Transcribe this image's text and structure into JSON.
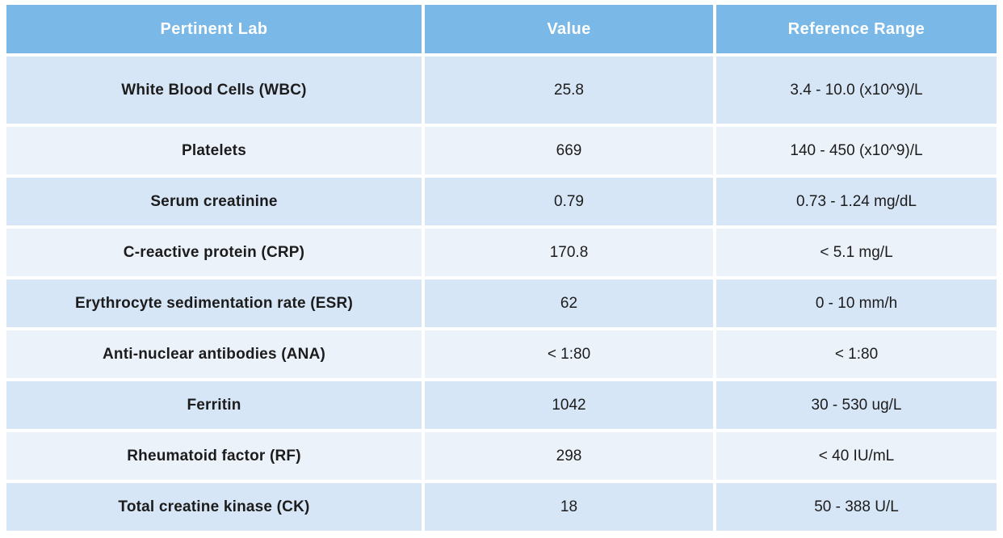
{
  "chart_data": {
    "type": "table",
    "columns": [
      "Pertinent Lab",
      "Value",
      "Reference Range"
    ],
    "rows": [
      [
        "White Blood Cells (WBC)",
        "25.8",
        "3.4 - 10.0 (x10^9)/L"
      ],
      [
        "Platelets",
        "669",
        "140 - 450 (x10^9)/L"
      ],
      [
        "Serum creatinine",
        "0.79",
        "0.73 - 1.24 mg/dL"
      ],
      [
        "C-reactive protein (CRP)",
        "170.8",
        "< 5.1 mg/L"
      ],
      [
        "Erythrocyte sedimentation rate (ESR)",
        "62",
        "0 - 10 mm/h"
      ],
      [
        "Anti-nuclear antibodies (ANA)",
        "< 1:80",
        "< 1:80"
      ],
      [
        "Ferritin",
        "1042",
        "30 - 530 ug/L"
      ],
      [
        "Rheumatoid factor (RF)",
        "298",
        "< 40 IU/mL"
      ],
      [
        "Total creatine kinase (CK)",
        "18",
        "50 - 388 U/L"
      ]
    ],
    "title": "",
    "legend": "none",
    "grid": "white cell gaps, alternating row shading"
  },
  "colors": {
    "background": "#ffffff",
    "header_bg": "#79b8e7",
    "header_text": "#ffffff",
    "row_dark_bg": "#d7e6f6",
    "row_light_bg": "#ecf2fa",
    "body_text": "#1c1c1c"
  }
}
